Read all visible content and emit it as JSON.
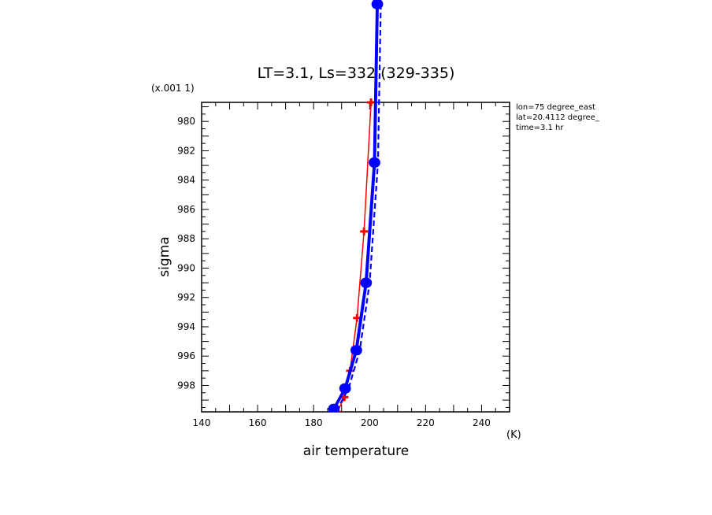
{
  "chart_data": {
    "type": "line",
    "title": "LT=3.1, Ls=332 (329-335)",
    "xlabel": "air temperature",
    "xunit": "(K)",
    "ylabel": "sigma",
    "yscale_note": "(x.001 1)",
    "xlim": [
      140,
      250
    ],
    "ylim": [
      999.8,
      978.7
    ],
    "y_inverted": true,
    "x_ticks": [
      140,
      160,
      180,
      200,
      220,
      240
    ],
    "y_ticks": [
      980,
      982,
      984,
      986,
      988,
      990,
      992,
      994,
      996,
      998
    ],
    "annotations": [
      "lon=75 degree_east",
      "lat=20.4112 degree_",
      "time=3.1 hr"
    ],
    "grid": false,
    "series": [
      {
        "color": "#ff0000",
        "marker": "plus",
        "values": [
          {
            "x": 200.5,
            "y": 978.7
          },
          {
            "x": 198.0,
            "y": 987.5
          },
          {
            "x": 195.5,
            "y": 993.4
          },
          {
            "x": 193.0,
            "y": 997.0
          },
          {
            "x": 191.0,
            "y": 998.8
          },
          {
            "x": 188.5,
            "y": 999.8
          }
        ]
      },
      {
        "color": "#0000ff",
        "marker": "circle",
        "values": [
          {
            "x": 203.0,
            "y": 972.0
          },
          {
            "x": 202.0,
            "y": 982.8
          },
          {
            "x": 199.0,
            "y": 991.0
          },
          {
            "x": 195.5,
            "y": 995.6
          },
          {
            "x": 191.5,
            "y": 998.2
          },
          {
            "x": 187.5,
            "y": 999.6
          }
        ]
      },
      {
        "color": "#0000ff",
        "marker": "circle",
        "values": [
          {
            "x": 202.5,
            "y": 972.0
          },
          {
            "x": 201.5,
            "y": 982.8
          },
          {
            "x": 198.5,
            "y": 991.0
          },
          {
            "x": 195.0,
            "y": 995.6
          },
          {
            "x": 191.0,
            "y": 998.2
          },
          {
            "x": 187.0,
            "y": 999.6
          }
        ]
      },
      {
        "color": "#0000ff",
        "marker": "none",
        "dashed": true,
        "values": [
          {
            "x": 204.0,
            "y": 972.0
          },
          {
            "x": 203.0,
            "y": 982.8
          },
          {
            "x": 200.0,
            "y": 991.0
          },
          {
            "x": 196.5,
            "y": 995.6
          },
          {
            "x": 192.5,
            "y": 998.2
          },
          {
            "x": 188.5,
            "y": 999.6
          }
        ]
      }
    ]
  }
}
